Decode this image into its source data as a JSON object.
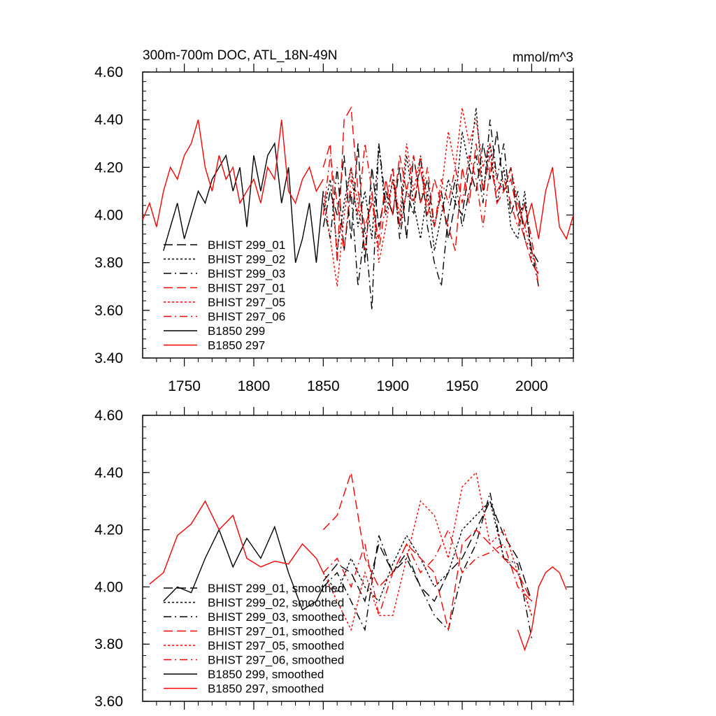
{
  "chart_data": [
    {
      "type": "line",
      "title": "300m-700m DOC, ATL_18N-49N",
      "units": "mmol/m^3",
      "xlim": [
        1720,
        2030
      ],
      "ylim": [
        3.4,
        4.6
      ],
      "x_ticks": [
        1750,
        1800,
        1850,
        1900,
        1950,
        2000
      ],
      "x_tick_labels": [
        "1750",
        "1800",
        "1850",
        "1900",
        "1950",
        "2000"
      ],
      "y_ticks": [
        3.4,
        3.6,
        3.8,
        4.0,
        4.2,
        4.4,
        4.6
      ],
      "y_tick_labels": [
        "3.40",
        "3.60",
        "3.80",
        "4.00",
        "4.20",
        "4.40",
        "4.60"
      ],
      "legend_position": "lower-left",
      "series": [
        {
          "name": "BHIST 299_01",
          "color": "#000000",
          "style": "dash",
          "x": [
            1850,
            1855,
            1860,
            1865,
            1870,
            1875,
            1880,
            1885,
            1890,
            1895,
            1900,
            1905,
            1910,
            1915,
            1920,
            1925,
            1930,
            1935,
            1940,
            1945,
            1950,
            1955,
            1960,
            1965,
            1970,
            1975,
            1980,
            1985,
            1990,
            1995,
            2000,
            2005
          ],
          "values": [
            3.95,
            4.1,
            4.0,
            4.25,
            3.9,
            4.3,
            3.8,
            4.2,
            3.95,
            4.1,
            4.0,
            4.2,
            3.9,
            4.25,
            4.05,
            4.15,
            3.95,
            4.1,
            3.9,
            4.05,
            4.0,
            4.2,
            4.1,
            4.3,
            4.15,
            4.35,
            4.1,
            4.2,
            4.0,
            4.05,
            3.85,
            3.8
          ]
        },
        {
          "name": "BHIST 299_02",
          "color": "#000000",
          "style": "dot",
          "x": [
            1850,
            1855,
            1860,
            1865,
            1870,
            1875,
            1880,
            1885,
            1890,
            1895,
            1900,
            1905,
            1910,
            1915,
            1920,
            1925,
            1930,
            1935,
            1940,
            1945,
            1950,
            1955,
            1960,
            1965,
            1970,
            1975,
            1980,
            1985,
            1990,
            1995,
            2000,
            2005
          ],
          "values": [
            4.0,
            4.15,
            3.85,
            4.05,
            4.2,
            3.95,
            4.1,
            3.9,
            4.3,
            4.0,
            4.15,
            3.95,
            4.25,
            4.05,
            3.9,
            4.1,
            3.85,
            4.0,
            4.15,
            4.05,
            4.35,
            4.2,
            4.45,
            4.1,
            4.3,
            4.05,
            4.2,
            3.95,
            3.9,
            4.1,
            3.8,
            3.75
          ]
        },
        {
          "name": "BHIST 299_03",
          "color": "#000000",
          "style": "dashdot",
          "x": [
            1850,
            1855,
            1860,
            1865,
            1870,
            1875,
            1880,
            1885,
            1890,
            1895,
            1900,
            1905,
            1910,
            1915,
            1920,
            1925,
            1930,
            1935,
            1940,
            1945,
            1950,
            1955,
            1960,
            1965,
            1970,
            1975,
            1980,
            1985,
            1990,
            1995,
            2000,
            2005
          ],
          "values": [
            4.05,
            3.9,
            4.2,
            3.85,
            4.1,
            3.7,
            3.95,
            3.6,
            4.3,
            4.05,
            4.2,
            3.9,
            4.1,
            4.0,
            4.25,
            3.95,
            3.8,
            3.7,
            4.0,
            4.15,
            3.95,
            4.1,
            4.25,
            4.05,
            4.4,
            4.15,
            4.3,
            4.0,
            4.1,
            3.9,
            3.85,
            3.7
          ]
        },
        {
          "name": "BHIST 297_01",
          "color": "#ff0000",
          "style": "dash",
          "x": [
            1850,
            1855,
            1860,
            1865,
            1870,
            1875,
            1880,
            1885,
            1890,
            1895,
            1900,
            1905,
            1910,
            1915,
            1920,
            1925,
            1930,
            1935,
            1940,
            1945,
            1950,
            1955,
            1960,
            1965,
            1970,
            1975,
            1980,
            1985,
            1990,
            1995,
            2000,
            2005
          ],
          "values": [
            4.2,
            4.3,
            3.8,
            4.4,
            4.45,
            4.1,
            3.95,
            4.05,
            3.9,
            4.15,
            4.0,
            4.25,
            4.1,
            4.05,
            4.2,
            4.0,
            4.15,
            4.05,
            3.95,
            3.85,
            4.2,
            4.05,
            4.3,
            4.1,
            4.25,
            4.05,
            4.1,
            4.15,
            4.0,
            3.9,
            3.8,
            3.75
          ]
        },
        {
          "name": "BHIST 297_05",
          "color": "#ff0000",
          "style": "dot",
          "x": [
            1850,
            1855,
            1860,
            1865,
            1870,
            1875,
            1880,
            1885,
            1890,
            1895,
            1900,
            1905,
            1910,
            1915,
            1920,
            1925,
            1930,
            1935,
            1940,
            1945,
            1950,
            1955,
            1960,
            1965,
            1970,
            1975,
            1980,
            1985,
            1990,
            1995,
            2000,
            2005
          ],
          "values": [
            4.1,
            3.9,
            3.7,
            4.0,
            4.2,
            4.05,
            3.85,
            4.1,
            3.8,
            3.95,
            4.15,
            4.0,
            4.3,
            4.1,
            4.25,
            4.05,
            3.95,
            4.1,
            4.35,
            4.2,
            4.45,
            4.3,
            4.4,
            4.2,
            4.3,
            4.15,
            4.1,
            4.2,
            4.05,
            3.95,
            3.85,
            3.75
          ]
        },
        {
          "name": "BHIST 297_06",
          "color": "#ff0000",
          "style": "dashdot",
          "x": [
            1850,
            1855,
            1860,
            1865,
            1870,
            1875,
            1880,
            1885,
            1890,
            1895,
            1900,
            1905,
            1910,
            1915,
            1920,
            1925,
            1930,
            1935,
            1940,
            1945,
            1950,
            1955,
            1960,
            1965,
            1970,
            1975,
            1980,
            1985,
            1990,
            1995,
            2000,
            2005
          ],
          "values": [
            4.0,
            4.25,
            4.05,
            3.85,
            4.15,
            4.0,
            4.3,
            4.1,
            3.85,
            4.05,
            4.2,
            3.95,
            4.1,
            4.25,
            4.05,
            4.2,
            3.95,
            4.15,
            4.05,
            4.2,
            4.05,
            4.25,
            4.15,
            3.95,
            4.2,
            4.1,
            4.15,
            4.05,
            3.95,
            4.05,
            3.9,
            3.7
          ]
        },
        {
          "name": "B1850 299",
          "color": "#000000",
          "style": "solid",
          "x": [
            1735,
            1740,
            1745,
            1750,
            1755,
            1760,
            1765,
            1770,
            1775,
            1780,
            1785,
            1790,
            1795,
            1800,
            1805,
            1810,
            1815,
            1820,
            1825,
            1830,
            1835,
            1840,
            1845,
            1850
          ],
          "values": [
            3.85,
            3.95,
            4.05,
            3.9,
            4.0,
            4.1,
            4.05,
            4.15,
            4.2,
            4.25,
            4.1,
            4.2,
            3.95,
            4.25,
            4.1,
            4.25,
            4.3,
            4.05,
            4.2,
            3.8,
            3.9,
            4.05,
            3.8,
            4.1
          ]
        },
        {
          "name": "B1850 297",
          "color": "#ff0000",
          "style": "solid",
          "x": [
            1720,
            1725,
            1730,
            1735,
            1740,
            1745,
            1750,
            1755,
            1760,
            1765,
            1770,
            1775,
            1780,
            1785,
            1790,
            1795,
            1800,
            1805,
            1810,
            1815,
            1820,
            1825,
            1830,
            1835,
            1840,
            1845,
            1850,
            1990,
            1995,
            2000,
            2005,
            2010,
            2015,
            2020,
            2025,
            2030
          ],
          "values": [
            3.98,
            4.05,
            3.95,
            4.1,
            4.2,
            4.15,
            4.25,
            4.3,
            4.4,
            4.2,
            4.1,
            4.25,
            4.15,
            4.2,
            4.05,
            4.1,
            4.15,
            4.05,
            4.2,
            4.15,
            4.4,
            4.1,
            4.05,
            4.15,
            4.2,
            4.1,
            4.15,
            4.05,
            3.95,
            4.05,
            3.9,
            4.1,
            4.2,
            3.95,
            3.9,
            4.0
          ]
        }
      ]
    },
    {
      "type": "line",
      "xlim": [
        1720,
        2030
      ],
      "ylim": [
        3.6,
        4.6
      ],
      "x_ticks": [
        1750,
        1800,
        1850,
        1900,
        1950,
        2000
      ],
      "y_ticks": [
        3.6,
        3.8,
        4.0,
        4.2,
        4.4,
        4.6
      ],
      "y_tick_labels": [
        "3.60",
        "3.80",
        "4.00",
        "4.20",
        "4.40",
        "4.60"
      ],
      "legend_position": "lower-left",
      "series": [
        {
          "name": "BHIST 299_01, smoothed",
          "color": "#000000",
          "style": "dash",
          "x": [
            1850,
            1860,
            1870,
            1880,
            1890,
            1900,
            1910,
            1920,
            1930,
            1940,
            1950,
            1960,
            1970,
            1980,
            1990,
            2000
          ],
          "values": [
            4.02,
            4.08,
            4.05,
            3.95,
            4.15,
            4.05,
            4.12,
            4.0,
            3.95,
            4.05,
            4.1,
            4.2,
            4.3,
            4.18,
            4.1,
            3.95
          ]
        },
        {
          "name": "BHIST 299_02, smoothed",
          "color": "#000000",
          "style": "dot",
          "x": [
            1850,
            1860,
            1870,
            1880,
            1890,
            1900,
            1910,
            1920,
            1930,
            1940,
            1950,
            1960,
            1970,
            1980,
            1990,
            2000
          ],
          "values": [
            4.05,
            3.98,
            4.1,
            4.0,
            3.95,
            4.08,
            4.18,
            4.1,
            4.0,
            4.05,
            4.2,
            4.25,
            4.3,
            4.1,
            4.05,
            3.9
          ]
        },
        {
          "name": "BHIST 299_03, smoothed",
          "color": "#000000",
          "style": "dashdot",
          "x": [
            1850,
            1860,
            1870,
            1880,
            1890,
            1900,
            1910,
            1920,
            1930,
            1940,
            1950,
            1960,
            1970,
            1980,
            1990,
            2000
          ],
          "values": [
            4.0,
            4.05,
            3.95,
            3.85,
            4.18,
            4.05,
            4.1,
            4.0,
            3.9,
            3.85,
            4.05,
            4.15,
            4.33,
            4.1,
            4.08,
            3.82
          ]
        },
        {
          "name": "BHIST 297_01, smoothed",
          "color": "#ff0000",
          "style": "dash",
          "x": [
            1850,
            1860,
            1870,
            1880,
            1890,
            1900,
            1910,
            1920,
            1930,
            1940,
            1950,
            1960,
            1970,
            1980,
            1990,
            2000
          ],
          "values": [
            4.2,
            4.25,
            4.4,
            4.1,
            4.0,
            4.05,
            4.15,
            4.1,
            4.05,
            3.85,
            4.15,
            4.2,
            4.15,
            4.1,
            4.05,
            3.95
          ]
        },
        {
          "name": "BHIST 297_05, smoothed",
          "color": "#ff0000",
          "style": "dot",
          "x": [
            1850,
            1860,
            1870,
            1880,
            1890,
            1900,
            1910,
            1920,
            1930,
            1940,
            1950,
            1960,
            1970,
            1980,
            1990,
            2000
          ],
          "values": [
            4.05,
            3.95,
            3.85,
            4.05,
            3.9,
            3.9,
            4.1,
            4.3,
            4.25,
            4.1,
            4.35,
            4.4,
            4.15,
            4.2,
            4.05,
            3.9
          ]
        },
        {
          "name": "BHIST 297_06, smoothed",
          "color": "#ff0000",
          "style": "dashdot",
          "x": [
            1850,
            1860,
            1870,
            1880,
            1890,
            1900,
            1910,
            1920,
            1930,
            1940,
            1950,
            1960,
            1970,
            1980,
            1990,
            2000
          ],
          "values": [
            4.05,
            4.1,
            4.0,
            4.15,
            3.9,
            4.05,
            4.15,
            4.05,
            4.1,
            4.2,
            4.05,
            4.1,
            4.12,
            4.15,
            4.0,
            3.95
          ]
        },
        {
          "name": "B1850 299, smoothed",
          "color": "#000000",
          "style": "solid",
          "x": [
            1735,
            1745,
            1755,
            1765,
            1775,
            1785,
            1795,
            1805,
            1815,
            1825,
            1835,
            1845,
            1850
          ],
          "values": [
            3.95,
            4.0,
            3.98,
            4.1,
            4.2,
            4.07,
            4.17,
            4.1,
            4.21,
            4.05,
            3.92,
            3.95,
            4.0
          ]
        },
        {
          "name": "B1850 297, smoothed",
          "color": "#ff0000",
          "style": "solid",
          "x": [
            1725,
            1735,
            1745,
            1755,
            1765,
            1775,
            1785,
            1795,
            1805,
            1815,
            1825,
            1835,
            1845,
            1850,
            1990,
            1995,
            2000,
            2005,
            2010,
            2015,
            2020,
            2025
          ],
          "values": [
            4.01,
            4.05,
            4.18,
            4.22,
            4.3,
            4.2,
            4.25,
            4.1,
            4.07,
            4.09,
            4.08,
            4.15,
            4.1,
            4.05,
            3.85,
            3.78,
            3.85,
            4.0,
            4.05,
            4.07,
            4.05,
            3.99
          ]
        }
      ]
    }
  ]
}
